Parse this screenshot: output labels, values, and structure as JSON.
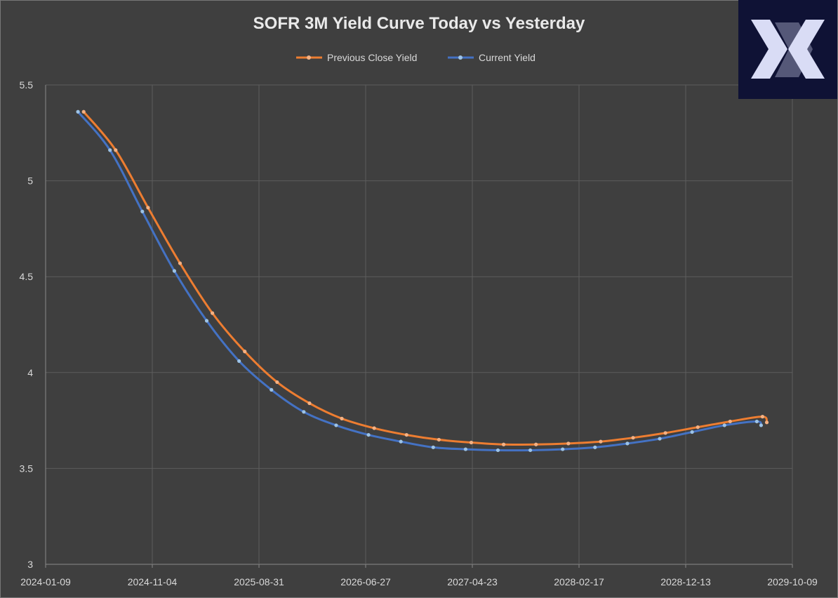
{
  "colors": {
    "background": "#3f3f3f",
    "previous": "#ed7d31",
    "previous_marker": "#f4b183",
    "current": "#4472c4",
    "current_marker": "#9dc3e6",
    "logo_bg": "#0f1235",
    "logo_mark": "#d9dcf5"
  },
  "logo": {
    "icon": "x-logo-icon"
  },
  "chart_data": {
    "type": "line",
    "title": "SOFR 3M Yield Curve Today vs Yesterday",
    "xlabel": "",
    "ylabel": "",
    "ylim": [
      3,
      5.5
    ],
    "yticks": [
      3,
      3.5,
      4,
      4.5,
      5,
      5.5
    ],
    "ytick_labels": [
      "3",
      "3.5",
      "4",
      "4.5",
      "5",
      "5.5"
    ],
    "xlim": [
      "2024-01-09",
      "2029-10-09"
    ],
    "xticks": [
      "2024-01-09",
      "2024-11-04",
      "2025-08-31",
      "2026-06-27",
      "2027-04-23",
      "2028-02-17",
      "2028-12-13",
      "2029-10-09"
    ],
    "grid": true,
    "legend_position": "top",
    "series": [
      {
        "name": "Previous Close Yield",
        "x": [
          "2024-04-25",
          "2024-07-24",
          "2024-10-23",
          "2025-01-21",
          "2025-04-22",
          "2025-07-22",
          "2025-10-21",
          "2026-01-20",
          "2026-04-21",
          "2026-07-21",
          "2026-10-20",
          "2027-01-19",
          "2027-04-20",
          "2027-07-20",
          "2027-10-19",
          "2028-01-18",
          "2028-04-18",
          "2028-07-18",
          "2028-10-17",
          "2029-01-16",
          "2029-04-17",
          "2029-07-17",
          "2029-07-29"
        ],
        "y": [
          5.36,
          5.16,
          4.86,
          4.57,
          4.31,
          4.11,
          3.95,
          3.84,
          3.76,
          3.71,
          3.675,
          3.65,
          3.635,
          3.625,
          3.625,
          3.63,
          3.64,
          3.66,
          3.685,
          3.715,
          3.745,
          3.77,
          3.74
        ]
      },
      {
        "name": "Current Yield",
        "x": [
          "2024-04-09",
          "2024-07-08",
          "2024-10-07",
          "2025-01-05",
          "2025-04-06",
          "2025-07-06",
          "2025-10-05",
          "2026-01-04",
          "2026-04-05",
          "2026-07-05",
          "2026-10-04",
          "2027-01-03",
          "2027-04-04",
          "2027-07-04",
          "2027-10-03",
          "2028-01-02",
          "2028-04-02",
          "2028-07-02",
          "2028-10-01",
          "2028-12-31",
          "2029-04-01",
          "2029-07-01",
          "2029-07-13"
        ],
        "y": [
          5.36,
          5.16,
          4.84,
          4.53,
          4.27,
          4.06,
          3.91,
          3.795,
          3.725,
          3.675,
          3.64,
          3.61,
          3.6,
          3.595,
          3.595,
          3.6,
          3.61,
          3.63,
          3.655,
          3.69,
          3.725,
          3.745,
          3.725
        ]
      }
    ]
  }
}
